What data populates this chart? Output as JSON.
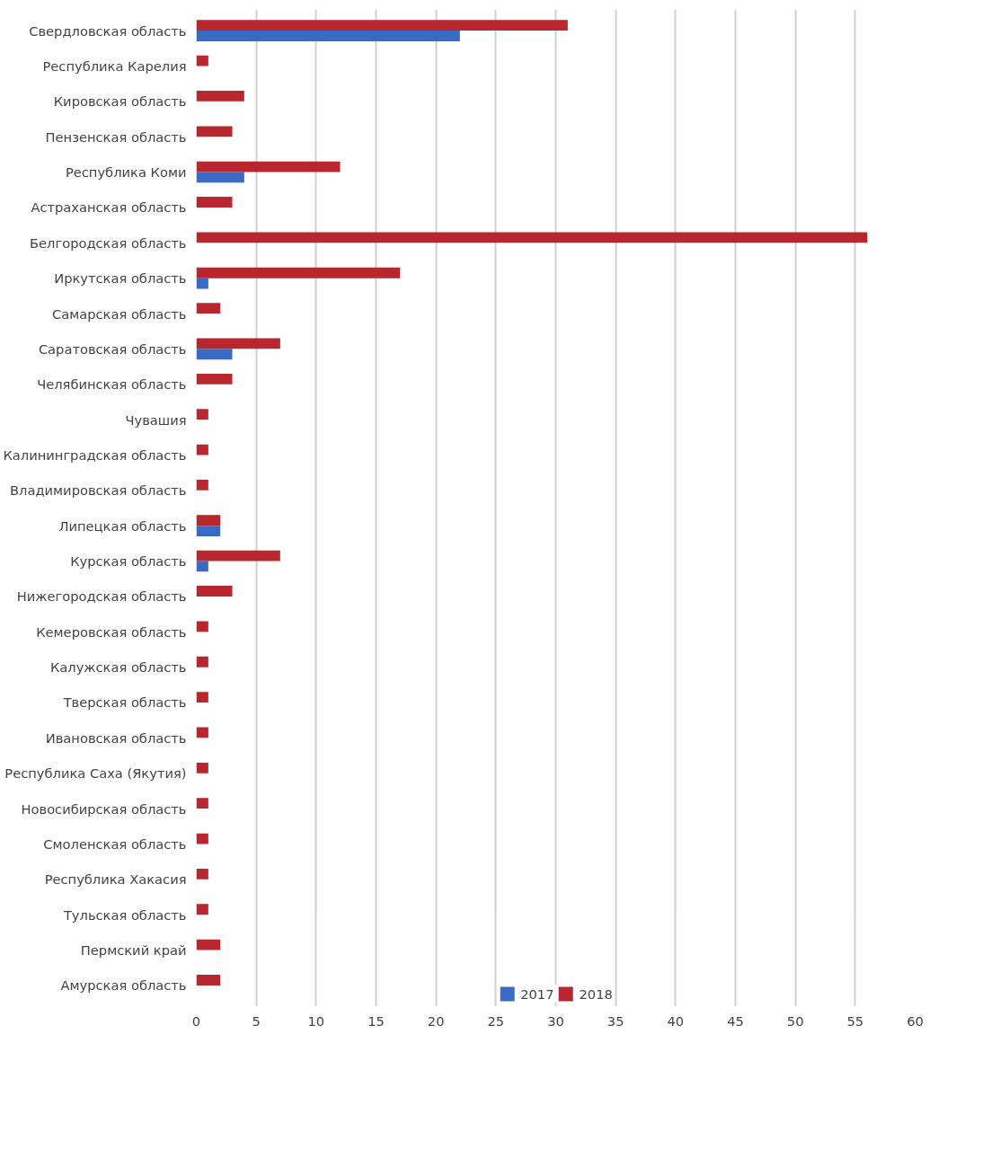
{
  "chart_data": {
    "type": "bar",
    "orientation": "horizontal",
    "categories": [
      "Свердловская область",
      "Республика Карелия",
      "Кировская область",
      "Пензенская область",
      "Республика Коми",
      "Астраханская область",
      "Белгородская область",
      "Иркутская область",
      "Самарская область",
      "Саратовская область",
      "Челябинская область",
      "Чувашия",
      "Калининградская область",
      "Владимировская область",
      "Липецкая область",
      "Курская область",
      "Нижегородская область",
      "Кемеровская область",
      "Калужская область",
      "Тверская область",
      "Ивановская область",
      "Республика Саха (Якутия)",
      "Новосибирская область",
      "Смоленская область",
      "Республика Хакасия",
      "Тульская область",
      "Пермский край",
      "Амурская область"
    ],
    "series": [
      {
        "name": "2017",
        "color": "#3a6bc4",
        "values": [
          22,
          0,
          0,
          0,
          4,
          0,
          0,
          1,
          0,
          3,
          0,
          0,
          0,
          0,
          2,
          1,
          0,
          0,
          0,
          0,
          0,
          0,
          0,
          0,
          0,
          0,
          0,
          0
        ]
      },
      {
        "name": "2018",
        "color": "#b8272d",
        "values": [
          31,
          1,
          4,
          3,
          12,
          3,
          56,
          17,
          2,
          7,
          3,
          1,
          1,
          1,
          2,
          7,
          3,
          1,
          1,
          1,
          1,
          1,
          1,
          1,
          1,
          1,
          2,
          2
        ]
      }
    ],
    "xlim": [
      0,
      60
    ],
    "xticks": [
      0,
      5,
      10,
      15,
      20,
      25,
      30,
      35,
      40,
      45,
      50,
      55,
      60
    ],
    "grid": "x",
    "legend": "bottom"
  }
}
